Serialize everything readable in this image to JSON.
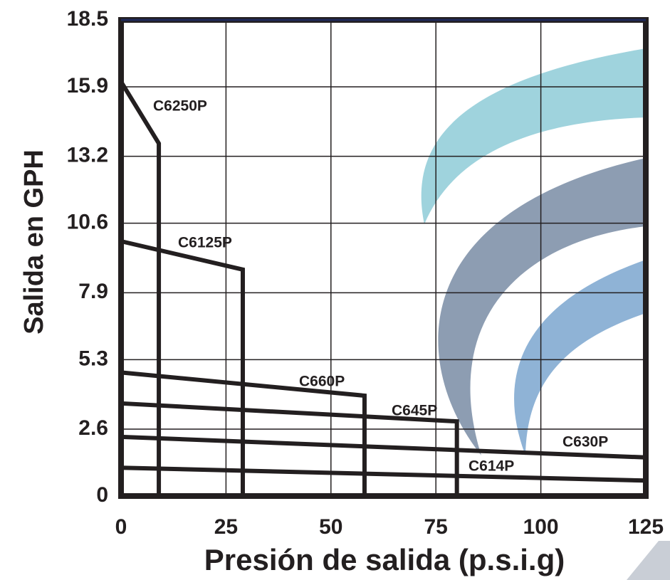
{
  "chart_data": {
    "type": "line",
    "x_label": "Presión de salida (p.s.i.g)",
    "y_label": "Salida en GPH",
    "xlim": [
      0,
      125
    ],
    "xticks": [
      0,
      25,
      50,
      75,
      100,
      125
    ],
    "ylim": [
      0,
      18.5
    ],
    "yticks": [
      0,
      2.6,
      5.3,
      7.9,
      10.6,
      13.2,
      15.9,
      18.5
    ],
    "grid": true,
    "series": [
      {
        "name": "C6250P",
        "color": "#231f20",
        "x": [
          0,
          9,
          9
        ],
        "values": [
          16.1,
          13.7,
          0
        ]
      },
      {
        "name": "C6125P",
        "color": "#231f20",
        "x": [
          0,
          29,
          29
        ],
        "values": [
          9.9,
          8.8,
          0
        ]
      },
      {
        "name": "C660P",
        "color": "#231f20",
        "x": [
          0,
          58,
          58
        ],
        "values": [
          4.8,
          3.9,
          0
        ]
      },
      {
        "name": "C645P",
        "color": "#231f20",
        "x": [
          0,
          80,
          80
        ],
        "values": [
          3.6,
          2.9,
          0
        ]
      },
      {
        "name": "C630P",
        "color": "#231f20",
        "x": [
          0,
          125
        ],
        "values": [
          2.3,
          1.5
        ]
      },
      {
        "name": "C614P",
        "color": "#231f20",
        "x": [
          0,
          125
        ],
        "values": [
          1.1,
          0.6
        ]
      }
    ]
  }
}
